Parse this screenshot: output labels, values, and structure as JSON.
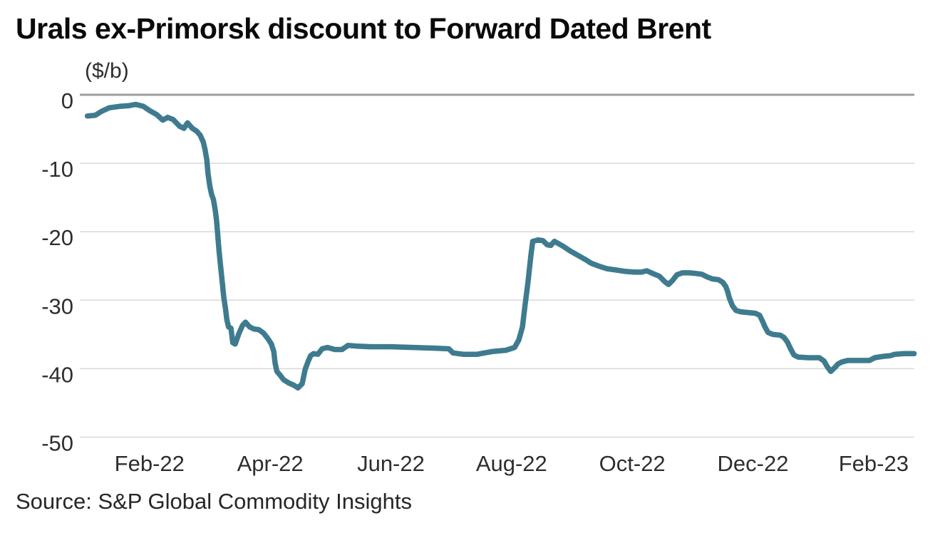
{
  "title": "Urals ex-Primorsk discount to Forward Dated Brent",
  "source_note": "Source: S&P Global Commodity Insights",
  "chart_data": {
    "type": "line",
    "title": "Urals ex-Primorsk discount to Forward Dated Brent",
    "unit_label": "($/b)",
    "ylabel": "($/b)",
    "xlabel": "",
    "legend": "none",
    "grid": "horizontal",
    "x_unit": "months since Jan-2022",
    "xlim": [
      -0.155,
      13.675
    ],
    "ylim": [
      -50,
      0
    ],
    "colors": {
      "line": "#3f7b8f",
      "zero_line": "#9e9e9e",
      "gridline": "#d9d9d9",
      "axis_text": "#2e2e2e"
    },
    "yticks": [
      {
        "value": 0,
        "label": "0"
      },
      {
        "value": -10,
        "label": "-10"
      },
      {
        "value": -20,
        "label": "-20"
      },
      {
        "value": -30,
        "label": "-30"
      },
      {
        "value": -40,
        "label": "-40"
      },
      {
        "value": -50,
        "label": "-50"
      }
    ],
    "xticks": [
      {
        "position": 1,
        "label": "Feb-22"
      },
      {
        "position": 3,
        "label": "Apr-22"
      },
      {
        "position": 5,
        "label": "Jun-22"
      },
      {
        "position": 7,
        "label": "Aug-22"
      },
      {
        "position": 9,
        "label": "Oct-22"
      },
      {
        "position": 11,
        "label": "Dec-22"
      },
      {
        "position": 13,
        "label": "Feb-23"
      }
    ],
    "series": [
      {
        "name": "Urals ex-Primorsk discount to Forward Dated Brent ($/b)",
        "points": [
          [
            -0.03,
            -3.1
          ],
          [
            0.1,
            -3.0
          ],
          [
            0.21,
            -2.4
          ],
          [
            0.33,
            -1.9
          ],
          [
            0.5,
            -1.7
          ],
          [
            0.65,
            -1.6
          ],
          [
            0.77,
            -1.4
          ],
          [
            0.9,
            -1.7
          ],
          [
            1.0,
            -2.3
          ],
          [
            1.12,
            -2.9
          ],
          [
            1.22,
            -3.7
          ],
          [
            1.3,
            -3.3
          ],
          [
            1.39,
            -3.6
          ],
          [
            1.5,
            -4.6
          ],
          [
            1.57,
            -4.9
          ],
          [
            1.63,
            -4.1
          ],
          [
            1.71,
            -4.9
          ],
          [
            1.78,
            -5.3
          ],
          [
            1.84,
            -5.9
          ],
          [
            1.89,
            -6.9
          ],
          [
            1.92,
            -8.0
          ],
          [
            1.95,
            -9.5
          ],
          [
            1.97,
            -11.5
          ],
          [
            2.0,
            -13.4
          ],
          [
            2.03,
            -14.6
          ],
          [
            2.06,
            -15.3
          ],
          [
            2.09,
            -16.9
          ],
          [
            2.11,
            -18.3
          ],
          [
            2.13,
            -20.4
          ],
          [
            2.15,
            -22.6
          ],
          [
            2.17,
            -24.4
          ],
          [
            2.19,
            -26.1
          ],
          [
            2.21,
            -27.7
          ],
          [
            2.23,
            -29.5
          ],
          [
            2.26,
            -31.3
          ],
          [
            2.28,
            -32.8
          ],
          [
            2.31,
            -33.9
          ],
          [
            2.35,
            -34.1
          ],
          [
            2.38,
            -36.2
          ],
          [
            2.42,
            -36.4
          ],
          [
            2.48,
            -34.9
          ],
          [
            2.54,
            -33.7
          ],
          [
            2.59,
            -33.2
          ],
          [
            2.66,
            -33.9
          ],
          [
            2.73,
            -34.2
          ],
          [
            2.81,
            -34.3
          ],
          [
            2.89,
            -34.8
          ],
          [
            2.96,
            -35.6
          ],
          [
            3.02,
            -36.4
          ],
          [
            3.06,
            -37.5
          ],
          [
            3.08,
            -39.1
          ],
          [
            3.11,
            -40.4
          ],
          [
            3.16,
            -40.9
          ],
          [
            3.22,
            -41.6
          ],
          [
            3.31,
            -42.1
          ],
          [
            3.39,
            -42.4
          ],
          [
            3.46,
            -42.8
          ],
          [
            3.53,
            -42.2
          ],
          [
            3.58,
            -40.1
          ],
          [
            3.63,
            -38.9
          ],
          [
            3.67,
            -38.1
          ],
          [
            3.72,
            -37.8
          ],
          [
            3.79,
            -37.9
          ],
          [
            3.86,
            -37.1
          ],
          [
            3.95,
            -36.9
          ],
          [
            4.07,
            -37.2
          ],
          [
            4.19,
            -37.2
          ],
          [
            4.29,
            -36.6
          ],
          [
            4.43,
            -36.7
          ],
          [
            4.66,
            -36.8
          ],
          [
            5.0,
            -36.8
          ],
          [
            5.37,
            -36.9
          ],
          [
            5.73,
            -37.0
          ],
          [
            5.96,
            -37.1
          ],
          [
            6.03,
            -37.7
          ],
          [
            6.2,
            -37.9
          ],
          [
            6.43,
            -37.9
          ],
          [
            6.67,
            -37.5
          ],
          [
            6.91,
            -37.3
          ],
          [
            7.05,
            -36.9
          ],
          [
            7.12,
            -35.8
          ],
          [
            7.18,
            -33.9
          ],
          [
            7.22,
            -31.0
          ],
          [
            7.27,
            -27.5
          ],
          [
            7.32,
            -23.5
          ],
          [
            7.35,
            -21.4
          ],
          [
            7.44,
            -21.2
          ],
          [
            7.52,
            -21.3
          ],
          [
            7.59,
            -21.9
          ],
          [
            7.65,
            -22.0
          ],
          [
            7.71,
            -21.4
          ],
          [
            7.77,
            -21.7
          ],
          [
            7.85,
            -22.1
          ],
          [
            7.97,
            -22.8
          ],
          [
            8.09,
            -23.4
          ],
          [
            8.21,
            -24.0
          ],
          [
            8.32,
            -24.6
          ],
          [
            8.44,
            -25.0
          ],
          [
            8.58,
            -25.4
          ],
          [
            8.74,
            -25.6
          ],
          [
            8.89,
            -25.8
          ],
          [
            9.03,
            -25.9
          ],
          [
            9.15,
            -25.9
          ],
          [
            9.24,
            -25.7
          ],
          [
            9.34,
            -26.1
          ],
          [
            9.45,
            -26.5
          ],
          [
            9.54,
            -27.3
          ],
          [
            9.6,
            -27.7
          ],
          [
            9.67,
            -27.1
          ],
          [
            9.74,
            -26.3
          ],
          [
            9.83,
            -26.0
          ],
          [
            9.95,
            -26.0
          ],
          [
            10.06,
            -26.1
          ],
          [
            10.15,
            -26.2
          ],
          [
            10.24,
            -26.6
          ],
          [
            10.33,
            -26.9
          ],
          [
            10.43,
            -27.0
          ],
          [
            10.5,
            -27.4
          ],
          [
            10.55,
            -28.0
          ],
          [
            10.58,
            -28.7
          ],
          [
            10.61,
            -29.7
          ],
          [
            10.66,
            -30.8
          ],
          [
            10.72,
            -31.5
          ],
          [
            10.8,
            -31.7
          ],
          [
            10.92,
            -31.8
          ],
          [
            11.04,
            -31.9
          ],
          [
            11.11,
            -32.2
          ],
          [
            11.16,
            -33.1
          ],
          [
            11.2,
            -33.9
          ],
          [
            11.25,
            -34.7
          ],
          [
            11.33,
            -35.0
          ],
          [
            11.45,
            -35.1
          ],
          [
            11.51,
            -35.4
          ],
          [
            11.57,
            -36.1
          ],
          [
            11.63,
            -37.2
          ],
          [
            11.68,
            -38.0
          ],
          [
            11.75,
            -38.3
          ],
          [
            11.92,
            -38.4
          ],
          [
            12.1,
            -38.4
          ],
          [
            12.18,
            -38.9
          ],
          [
            12.23,
            -39.7
          ],
          [
            12.29,
            -40.4
          ],
          [
            12.36,
            -39.8
          ],
          [
            12.41,
            -39.3
          ],
          [
            12.48,
            -39.0
          ],
          [
            12.57,
            -38.8
          ],
          [
            12.75,
            -38.8
          ],
          [
            12.93,
            -38.8
          ],
          [
            13.02,
            -38.4
          ],
          [
            13.16,
            -38.2
          ],
          [
            13.28,
            -38.1
          ],
          [
            13.35,
            -37.9
          ],
          [
            13.5,
            -37.8
          ],
          [
            13.67,
            -37.8
          ]
        ]
      }
    ]
  }
}
